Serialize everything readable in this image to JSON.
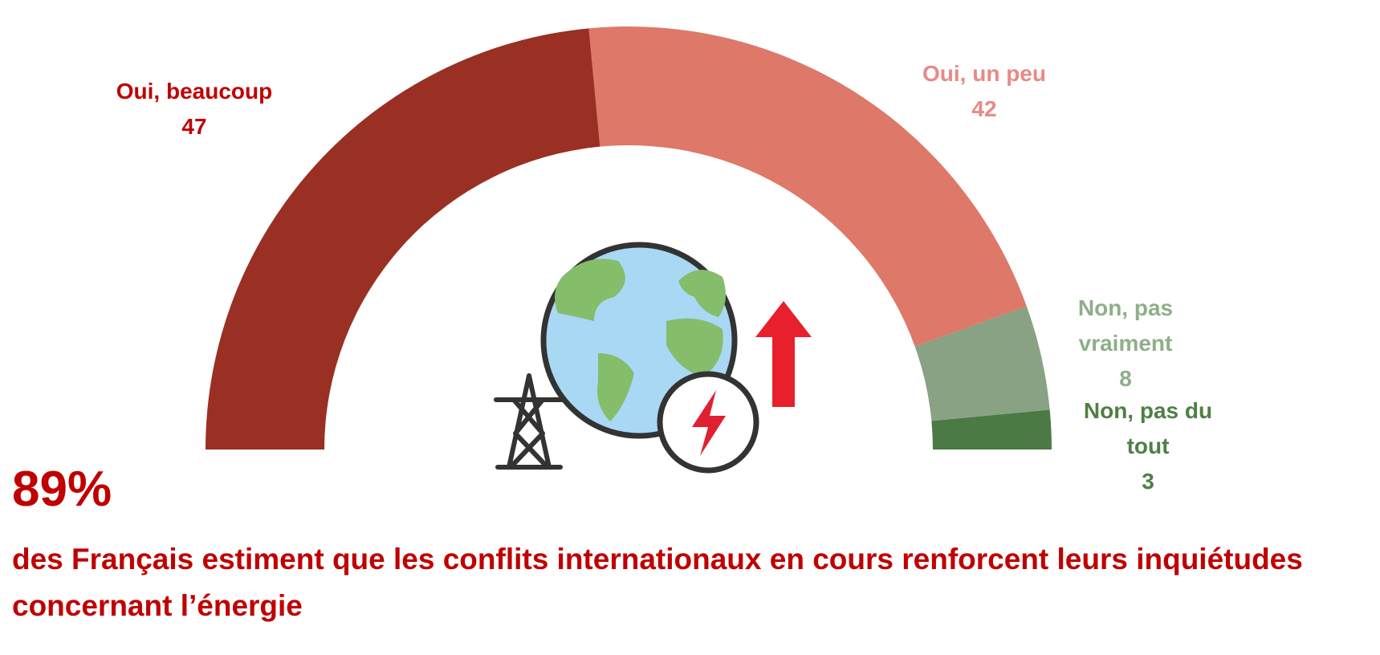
{
  "chart_data": {
    "type": "half-donut",
    "categories": [
      "Oui, beaucoup",
      "Oui, un peu",
      "Non, pas vraiment",
      "Non, pas du tout"
    ],
    "values": [
      47,
      42,
      8,
      3
    ],
    "colors": [
      "#9a2f24",
      "#de7869",
      "#88a283",
      "#4b7a44"
    ],
    "label_colors": [
      "#c00000",
      "#e88a86",
      "#8fae8a",
      "#4f7f45"
    ],
    "headline": "89%",
    "subtitle": "des Français estiment que les conflits internationaux en cours renforcent leurs inquiétudes concernant l’énergie"
  }
}
